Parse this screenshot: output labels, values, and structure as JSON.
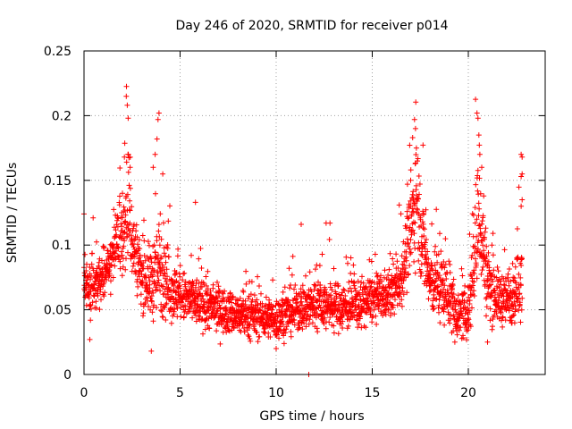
{
  "chart_data": {
    "type": "scatter",
    "title": "Day 246 of 2020, SRMTID for receiver p014",
    "xlabel": "GPS time / hours",
    "ylabel": "SRMTID / TECUs",
    "xlim": [
      0,
      24
    ],
    "ylim": [
      0,
      0.25
    ],
    "x_ticks": [
      "0",
      "5",
      "10",
      "15",
      "20"
    ],
    "y_ticks": [
      "0",
      "0.05",
      "0.1",
      "0.15",
      "0.2",
      "0.25"
    ],
    "grid": true,
    "marker": "+",
    "color": "#ff0000",
    "series": [
      {
        "name": "p014",
        "profile": [
          {
            "x": 0.0,
            "y": 0.068,
            "spread": 0.02
          },
          {
            "x": 0.5,
            "y": 0.062,
            "spread": 0.018
          },
          {
            "x": 1.0,
            "y": 0.08,
            "spread": 0.02
          },
          {
            "x": 1.5,
            "y": 0.092,
            "spread": 0.018
          },
          {
            "x": 2.0,
            "y": 0.11,
            "spread": 0.025
          },
          {
            "x": 2.3,
            "y": 0.125,
            "spread": 0.04
          },
          {
            "x": 2.6,
            "y": 0.098,
            "spread": 0.025
          },
          {
            "x": 3.0,
            "y": 0.075,
            "spread": 0.02
          },
          {
            "x": 3.5,
            "y": 0.072,
            "spread": 0.025
          },
          {
            "x": 4.0,
            "y": 0.085,
            "spread": 0.035
          },
          {
            "x": 4.5,
            "y": 0.066,
            "spread": 0.02
          },
          {
            "x": 5.0,
            "y": 0.06,
            "spread": 0.018
          },
          {
            "x": 6.0,
            "y": 0.055,
            "spread": 0.016
          },
          {
            "x": 7.0,
            "y": 0.05,
            "spread": 0.015
          },
          {
            "x": 8.0,
            "y": 0.046,
            "spread": 0.014
          },
          {
            "x": 9.0,
            "y": 0.045,
            "spread": 0.014
          },
          {
            "x": 10.0,
            "y": 0.043,
            "spread": 0.014
          },
          {
            "x": 11.0,
            "y": 0.05,
            "spread": 0.016
          },
          {
            "x": 12.0,
            "y": 0.055,
            "spread": 0.018
          },
          {
            "x": 13.0,
            "y": 0.052,
            "spread": 0.016
          },
          {
            "x": 14.0,
            "y": 0.053,
            "spread": 0.016
          },
          {
            "x": 15.0,
            "y": 0.058,
            "spread": 0.016
          },
          {
            "x": 16.0,
            "y": 0.062,
            "spread": 0.016
          },
          {
            "x": 16.5,
            "y": 0.075,
            "spread": 0.02
          },
          {
            "x": 17.0,
            "y": 0.11,
            "spread": 0.03
          },
          {
            "x": 17.3,
            "y": 0.14,
            "spread": 0.04
          },
          {
            "x": 17.7,
            "y": 0.095,
            "spread": 0.03
          },
          {
            "x": 18.0,
            "y": 0.07,
            "spread": 0.02
          },
          {
            "x": 18.5,
            "y": 0.07,
            "spread": 0.025
          },
          {
            "x": 19.0,
            "y": 0.06,
            "spread": 0.02
          },
          {
            "x": 19.5,
            "y": 0.045,
            "spread": 0.015
          },
          {
            "x": 20.0,
            "y": 0.048,
            "spread": 0.018
          },
          {
            "x": 20.3,
            "y": 0.09,
            "spread": 0.04
          },
          {
            "x": 20.6,
            "y": 0.12,
            "spread": 0.04
          },
          {
            "x": 21.0,
            "y": 0.07,
            "spread": 0.025
          },
          {
            "x": 21.5,
            "y": 0.06,
            "spread": 0.018
          },
          {
            "x": 22.0,
            "y": 0.058,
            "spread": 0.018
          },
          {
            "x": 22.5,
            "y": 0.065,
            "spread": 0.02
          },
          {
            "x": 22.8,
            "y": 0.08,
            "spread": 0.03
          }
        ],
        "highlights": [
          {
            "x": 2.2,
            "y": 0.215
          },
          {
            "x": 2.25,
            "y": 0.208
          },
          {
            "x": 2.3,
            "y": 0.198
          },
          {
            "x": 2.1,
            "y": 0.168
          },
          {
            "x": 2.4,
            "y": 0.16
          },
          {
            "x": 2.0,
            "y": 0.14
          },
          {
            "x": 3.9,
            "y": 0.202
          },
          {
            "x": 3.85,
            "y": 0.197
          },
          {
            "x": 3.8,
            "y": 0.182
          },
          {
            "x": 3.7,
            "y": 0.17
          },
          {
            "x": 3.6,
            "y": 0.16
          },
          {
            "x": 4.1,
            "y": 0.155
          },
          {
            "x": 5.8,
            "y": 0.133
          },
          {
            "x": 11.7,
            "y": 0.0
          },
          {
            "x": 11.3,
            "y": 0.116
          },
          {
            "x": 12.6,
            "y": 0.117
          },
          {
            "x": 12.8,
            "y": 0.117
          },
          {
            "x": 17.2,
            "y": 0.197
          },
          {
            "x": 17.25,
            "y": 0.19
          },
          {
            "x": 17.1,
            "y": 0.183
          },
          {
            "x": 17.3,
            "y": 0.175
          },
          {
            "x": 17.35,
            "y": 0.165
          },
          {
            "x": 17.0,
            "y": 0.15
          },
          {
            "x": 20.45,
            "y": 0.202
          },
          {
            "x": 20.5,
            "y": 0.198
          },
          {
            "x": 20.55,
            "y": 0.185
          },
          {
            "x": 20.6,
            "y": 0.17
          },
          {
            "x": 20.7,
            "y": 0.16
          },
          {
            "x": 20.8,
            "y": 0.138
          },
          {
            "x": 22.75,
            "y": 0.17
          },
          {
            "x": 22.8,
            "y": 0.168
          },
          {
            "x": 22.8,
            "y": 0.155
          },
          {
            "x": 22.75,
            "y": 0.153
          },
          {
            "x": 22.8,
            "y": 0.135
          },
          {
            "x": 22.75,
            "y": 0.13
          },
          {
            "x": 0.0,
            "y": 0.124
          },
          {
            "x": 0.3,
            "y": 0.027
          },
          {
            "x": 3.5,
            "y": 0.018
          },
          {
            "x": 10.0,
            "y": 0.02
          },
          {
            "x": 19.3,
            "y": 0.025
          },
          {
            "x": 21.0,
            "y": 0.025
          }
        ],
        "n_points": 2600
      }
    ]
  }
}
